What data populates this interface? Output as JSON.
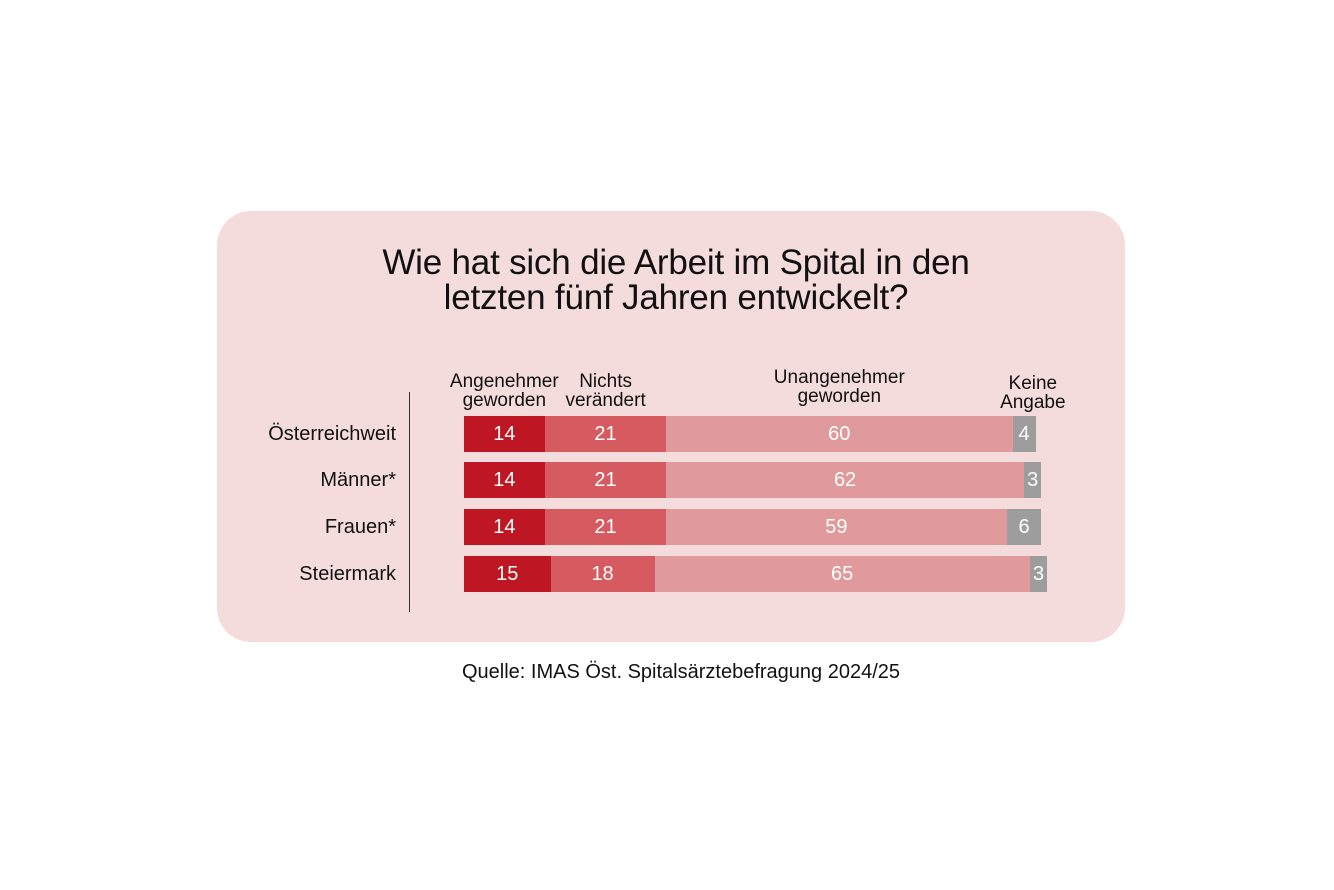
{
  "colors": {
    "background": "#f5dcdc",
    "angenehmer": "#be1622",
    "nichts": "#d55b61",
    "unangenehmer": "#e09a9b",
    "keine": "#9d9d9d"
  },
  "title": {
    "line1": "Wie hat sich die Arbeit im Spital in den",
    "line2": "letzten fünf Jahren entwickelt?"
  },
  "source": "Quelle: IMAS Öst. Spitalsärztebefragung 2024/25",
  "chart_data": {
    "type": "bar",
    "orientation": "horizontal",
    "stacked": true,
    "title": "Wie hat sich die Arbeit im Spital in den letzten fünf Jahren entwickelt?",
    "categories": [
      "Österreichweit",
      "Männer*",
      "Frauen*",
      "Steiermark"
    ],
    "series": [
      {
        "name": "Angenehmer geworden",
        "header_lines": [
          "Angenehmer",
          "geworden"
        ],
        "color": "#be1622",
        "values": [
          14,
          14,
          14,
          15
        ]
      },
      {
        "name": "Nichts verändert",
        "header_lines": [
          "Nichts",
          "verändert"
        ],
        "color": "#d55b61",
        "values": [
          21,
          21,
          21,
          18
        ]
      },
      {
        "name": "Unangenehmer geworden",
        "header_lines": [
          "Unangenehmer",
          "geworden"
        ],
        "color": "#e09a9b",
        "values": [
          60,
          62,
          59,
          65
        ]
      },
      {
        "name": "Keine Angabe",
        "header_lines": [
          "Keine",
          "Angabe"
        ],
        "color": "#9d9d9d",
        "values": [
          4,
          3,
          6,
          3
        ]
      }
    ],
    "xlim": [
      0,
      100
    ],
    "grid": false,
    "legend": "top"
  }
}
